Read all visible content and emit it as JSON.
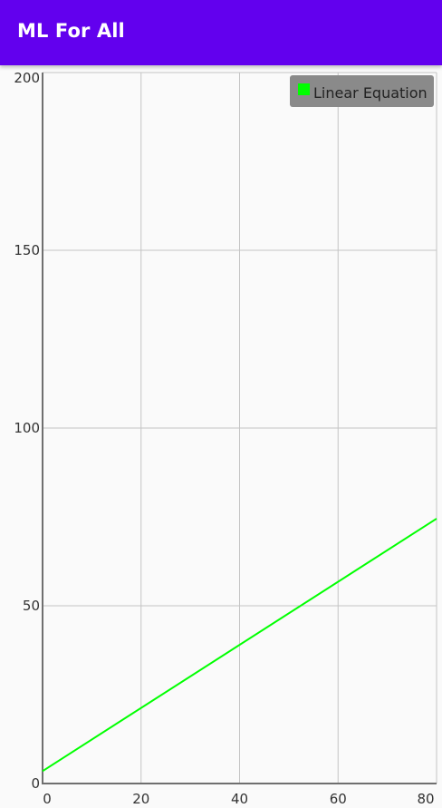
{
  "app_bar": {
    "title": "ML For All",
    "color": "#6200ee"
  },
  "chart_data": {
    "type": "line",
    "title": "",
    "xlabel": "",
    "ylabel": "",
    "xlim": [
      0,
      80
    ],
    "ylim": [
      0,
      200
    ],
    "x_ticks": [
      0,
      20,
      40,
      60,
      80
    ],
    "y_ticks": [
      0,
      50,
      100,
      150,
      200
    ],
    "grid": true,
    "legend_position": "top-right",
    "series": [
      {
        "name": "Linear Equation",
        "color": "#00ff00",
        "x": [
          0,
          80
        ],
        "y": [
          3.5,
          74.5
        ]
      }
    ]
  }
}
